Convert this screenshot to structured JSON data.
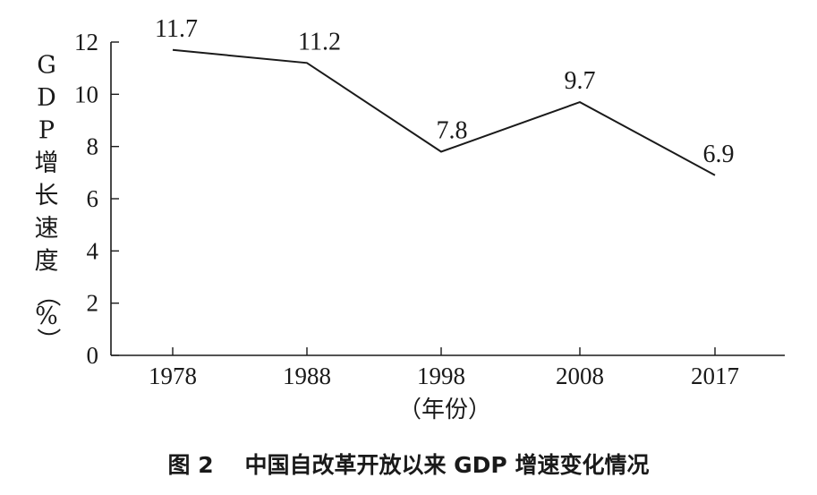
{
  "caption": "图 2    中国自改革开放以来 GDP 增速变化情况",
  "chart_data": {
    "type": "line",
    "title": "图 2    中国自改革开放以来 GDP 增速变化情况",
    "xlabel": "（年份）",
    "ylabel": "GDP增长速度（%）",
    "categories": [
      "1978",
      "1988",
      "1998",
      "2008",
      "2017"
    ],
    "series": [
      {
        "values": [
          11.7,
          11.2,
          7.8,
          9.7,
          6.9
        ]
      }
    ],
    "data_labels": [
      "11.7",
      "11.2",
      "7.8",
      "9.7",
      "6.9"
    ],
    "ylim": [
      0,
      12
    ],
    "yticks": [
      0,
      2,
      4,
      6,
      8,
      10,
      12
    ],
    "grid": false,
    "line_color": "#1a1a1a"
  }
}
